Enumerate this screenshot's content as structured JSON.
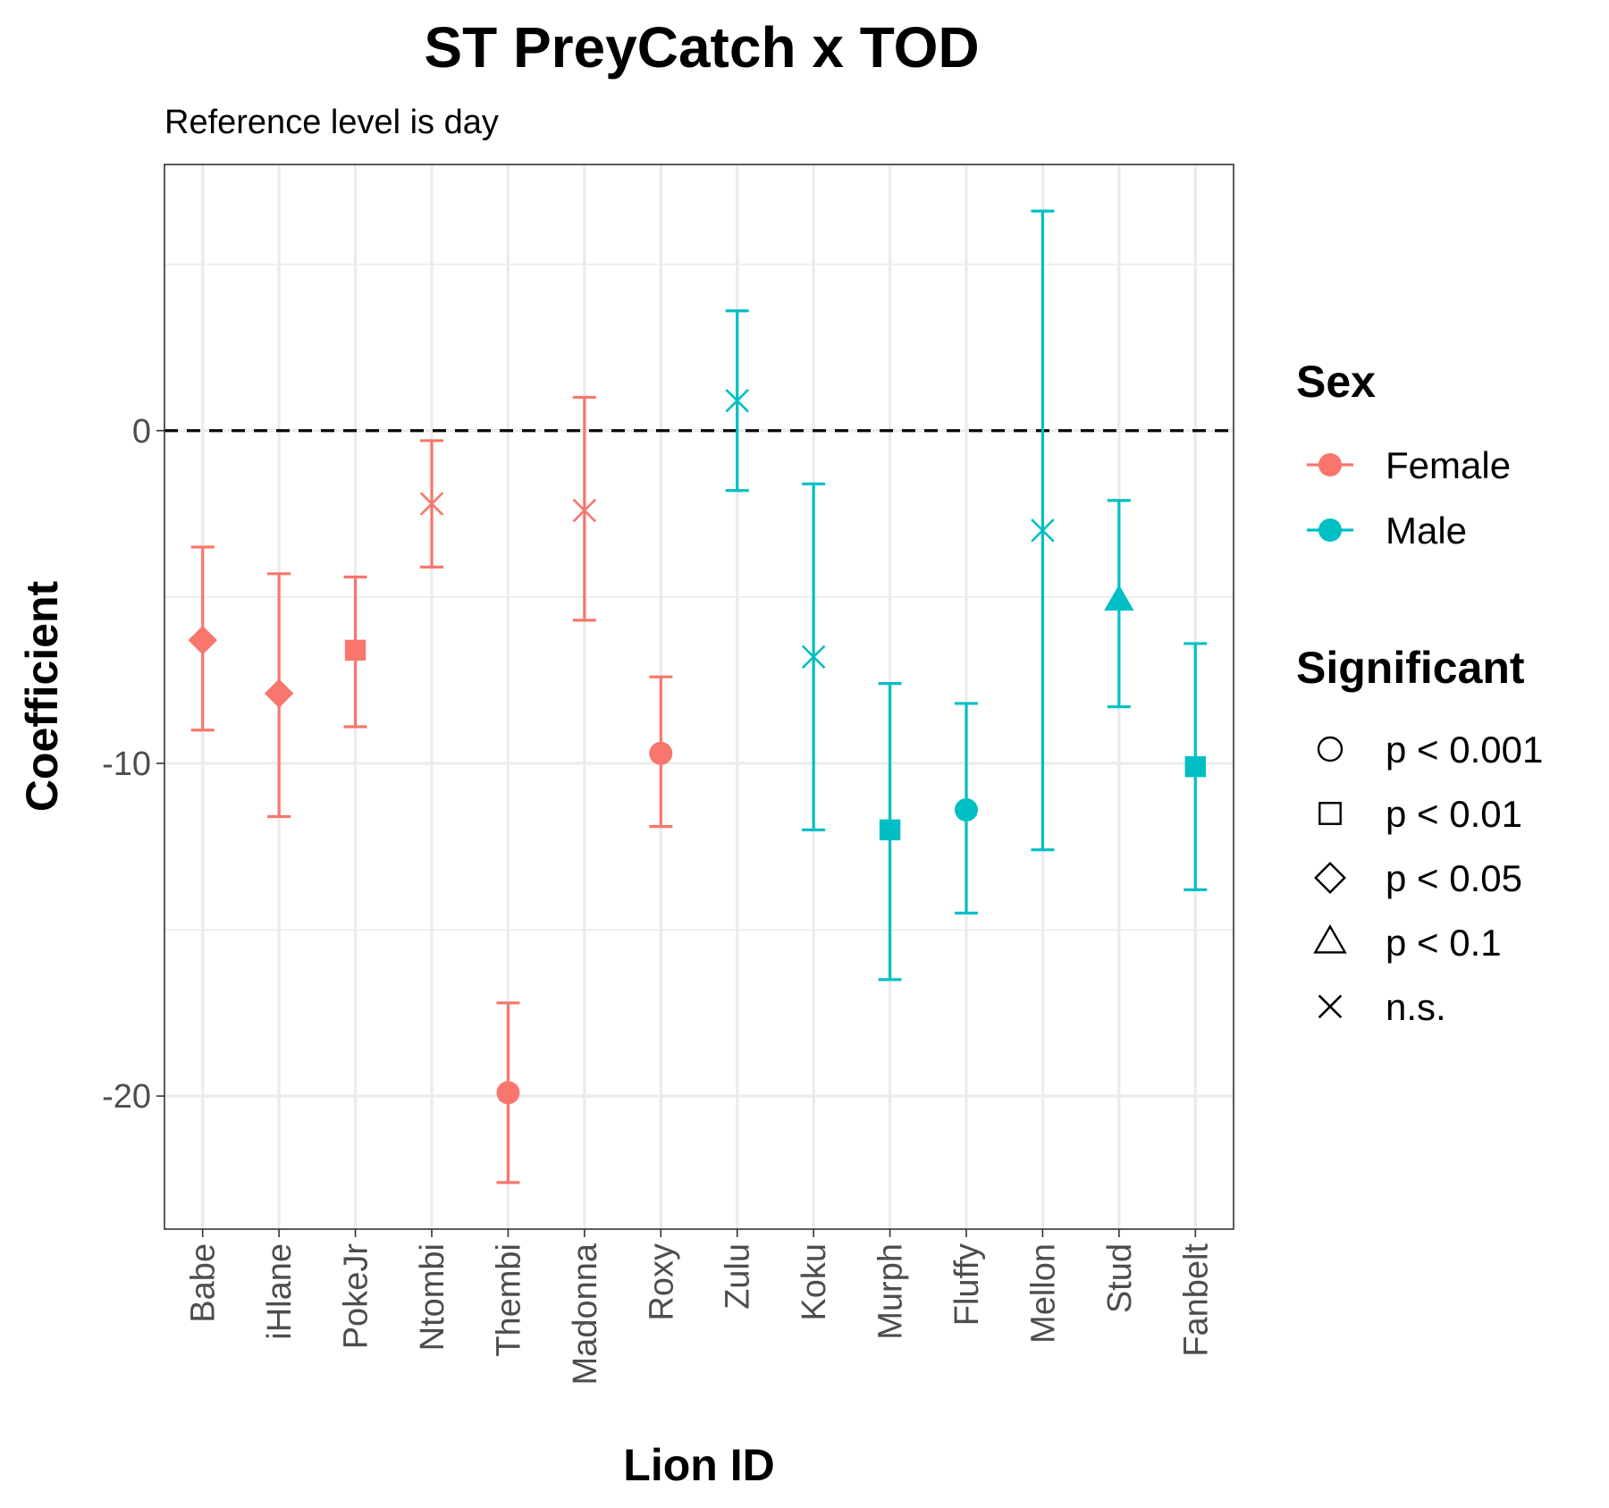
{
  "chart_data": {
    "type": "scatter",
    "title": "ST PreyCatch x TOD",
    "subtitle": "Reference level is day",
    "xlabel": "Lion ID",
    "ylabel": "Coefficient",
    "ylim": [
      -24,
      8
    ],
    "yticks": [
      0,
      -10,
      -20
    ],
    "reference_line": 0,
    "grid": true,
    "categories": [
      "Babe",
      "iHlane",
      "PokeJr",
      "Ntombi",
      "Thembi",
      "Madonna",
      "Roxy",
      "Zulu",
      "Koku",
      "Murph",
      "Fluffy",
      "Mellon",
      "Stud",
      "Fanbelt"
    ],
    "points": [
      {
        "id": "Babe",
        "sex": "Female",
        "sig": "p < 0.05",
        "value": -6.3,
        "lower": -9.0,
        "upper": -3.5
      },
      {
        "id": "iHlane",
        "sex": "Female",
        "sig": "p < 0.05",
        "value": -7.9,
        "lower": -11.6,
        "upper": -4.3
      },
      {
        "id": "PokeJr",
        "sex": "Female",
        "sig": "p < 0.01",
        "value": -6.6,
        "lower": -8.9,
        "upper": -4.4
      },
      {
        "id": "Ntombi",
        "sex": "Female",
        "sig": "n.s.",
        "value": -2.2,
        "lower": -4.1,
        "upper": -0.3
      },
      {
        "id": "Thembi",
        "sex": "Female",
        "sig": "p < 0.001",
        "value": -19.9,
        "lower": -22.6,
        "upper": -17.2
      },
      {
        "id": "Madonna",
        "sex": "Female",
        "sig": "n.s.",
        "value": -2.4,
        "lower": -5.7,
        "upper": 1.0
      },
      {
        "id": "Roxy",
        "sex": "Female",
        "sig": "p < 0.001",
        "value": -9.7,
        "lower": -11.9,
        "upper": -7.4
      },
      {
        "id": "Zulu",
        "sex": "Male",
        "sig": "n.s.",
        "value": 0.9,
        "lower": -1.8,
        "upper": 3.6
      },
      {
        "id": "Koku",
        "sex": "Male",
        "sig": "n.s.",
        "value": -6.8,
        "lower": -12.0,
        "upper": -1.6
      },
      {
        "id": "Murph",
        "sex": "Male",
        "sig": "p < 0.01",
        "value": -12.0,
        "lower": -16.5,
        "upper": -7.6
      },
      {
        "id": "Fluffy",
        "sex": "Male",
        "sig": "p < 0.001",
        "value": -11.4,
        "lower": -14.5,
        "upper": -8.2
      },
      {
        "id": "Mellon",
        "sex": "Male",
        "sig": "n.s.",
        "value": -3.0,
        "lower": -12.6,
        "upper": 6.6
      },
      {
        "id": "Stud",
        "sex": "Male",
        "sig": "p < 0.1",
        "value": -5.1,
        "lower": -8.3,
        "upper": -2.1
      },
      {
        "id": "Fanbelt",
        "sex": "Male",
        "sig": "p < 0.01",
        "value": -10.1,
        "lower": -13.8,
        "upper": -6.4
      }
    ],
    "legend": {
      "placement": "right",
      "sex": {
        "title": "Sex",
        "items": [
          {
            "label": "Female",
            "color": "#F8766D"
          },
          {
            "label": "Male",
            "color": "#00BFC4"
          }
        ]
      },
      "significance": {
        "title": "Significant",
        "items": [
          {
            "label": "p < 0.001",
            "shape": "circle"
          },
          {
            "label": "p < 0.01",
            "shape": "square"
          },
          {
            "label": "p < 0.05",
            "shape": "diamond"
          },
          {
            "label": "p < 0.1",
            "shape": "triangle"
          },
          {
            "label": "n.s.",
            "shape": "cross"
          }
        ]
      }
    }
  }
}
